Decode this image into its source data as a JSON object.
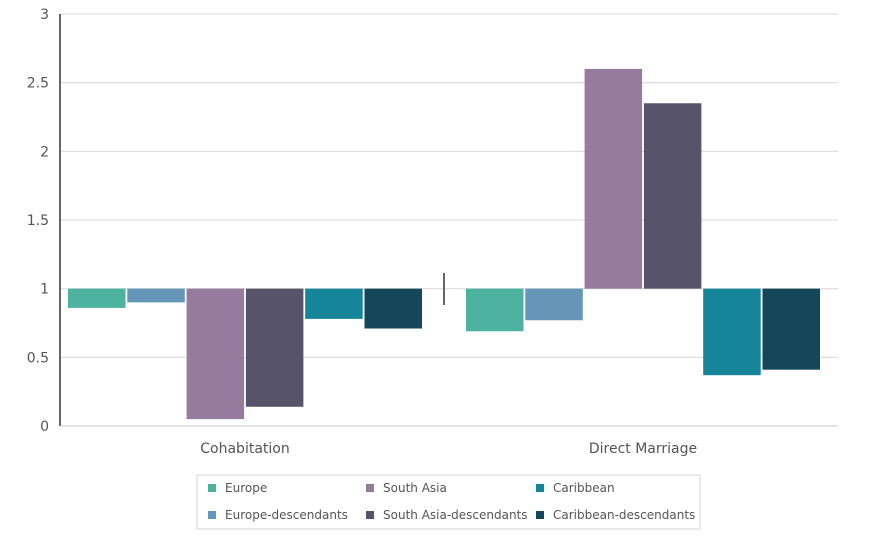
{
  "chart_data": {
    "type": "bar",
    "baseline": 1,
    "categories": [
      "Cohabitation",
      "Direct Marriage"
    ],
    "ylim": [
      0,
      3
    ],
    "yticks": [
      "0",
      "0.5",
      "1",
      "1.5",
      "2",
      "2.5",
      "3"
    ],
    "grid": true,
    "legend_position": "bottom",
    "series": [
      {
        "name": "Europe",
        "color": "#4db3a0",
        "values": [
          0.86,
          0.69
        ]
      },
      {
        "name": "Europe-descendants",
        "color": "#6596b8",
        "values": [
          0.9,
          0.77
        ]
      },
      {
        "name": "South Asia",
        "color": "#977b9f",
        "values": [
          0.05,
          2.6
        ]
      },
      {
        "name": "South Asia-descendants",
        "color": "#575369",
        "values": [
          0.14,
          2.35
        ]
      },
      {
        "name": "Caribbean",
        "color": "#16859a",
        "values": [
          0.78,
          0.37
        ]
      },
      {
        "name": "Caribbean-descendants",
        "color": "#15475a",
        "values": [
          0.71,
          0.41
        ]
      }
    ]
  }
}
